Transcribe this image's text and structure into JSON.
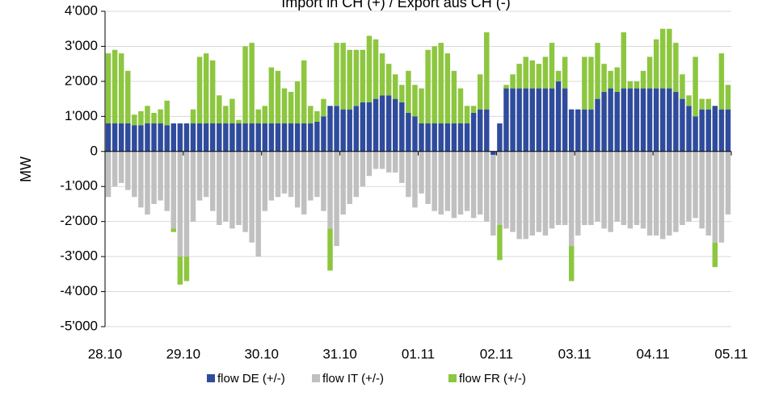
{
  "chart_data": {
    "type": "stacked_bar",
    "title": "Import in CH (+) / Export aus CH (-)",
    "y_label": "MW",
    "categories": [
      null,
      null,
      null,
      null,
      null,
      null,
      null,
      null,
      null,
      null,
      null,
      null,
      null,
      null,
      null,
      null,
      null,
      null,
      null,
      null,
      null,
      null,
      null,
      null,
      null,
      null,
      null,
      null,
      null,
      null,
      null,
      null,
      null,
      null,
      null,
      null,
      null,
      null,
      null,
      null,
      null,
      null,
      null,
      null,
      null,
      null,
      null,
      null,
      null,
      null,
      null,
      null,
      null,
      null,
      null,
      null,
      null,
      null,
      null,
      null,
      null,
      null,
      null,
      null,
      null,
      null,
      null,
      null,
      null,
      null,
      null,
      null,
      null,
      null,
      null,
      null,
      null,
      null,
      null,
      null,
      null,
      null,
      null,
      null,
      null,
      null,
      null,
      null,
      null,
      null,
      null,
      null,
      null,
      null,
      null,
      null
    ],
    "xticks": [
      {
        "value": 0,
        "label": "28.10"
      },
      {
        "value": 12,
        "label": "29.10"
      },
      {
        "value": 24,
        "label": "30.10"
      },
      {
        "value": 36,
        "label": "31.10"
      },
      {
        "value": 48,
        "label": "01.11"
      },
      {
        "value": 60,
        "label": "02.11"
      },
      {
        "value": 72,
        "label": "03.11"
      },
      {
        "value": 84,
        "label": "04.11"
      },
      {
        "value": 96,
        "label": "05.11"
      }
    ],
    "ylim": [
      -5000,
      4000
    ],
    "yticks": [
      {
        "value": -5000,
        "label": "-5'000"
      },
      {
        "value": -4000,
        "label": "-4'000"
      },
      {
        "value": -3000,
        "label": "-3'000"
      },
      {
        "value": -2000,
        "label": "-2'000"
      },
      {
        "value": -1000,
        "label": "-1'000"
      },
      0,
      {
        "value": 1000,
        "label": "1'000"
      },
      {
        "value": 2000,
        "label": "2'000"
      },
      {
        "value": 3000,
        "label": "3'000"
      },
      {
        "value": 4000,
        "label": "4'000"
      }
    ],
    "grid": true,
    "legend": "bottom",
    "series": [
      {
        "name": "flow DE (+/-)",
        "color": "#2f4b9c",
        "values": [
          800,
          800,
          800,
          800,
          750,
          750,
          800,
          800,
          800,
          750,
          800,
          800,
          800,
          800,
          800,
          800,
          800,
          800,
          800,
          800,
          800,
          800,
          800,
          800,
          800,
          800,
          800,
          800,
          800,
          800,
          800,
          800,
          850,
          1000,
          1300,
          1300,
          1200,
          1200,
          1300,
          1400,
          1400,
          1500,
          1600,
          1600,
          1500,
          1400,
          1100,
          1000,
          800,
          800,
          800,
          800,
          800,
          800,
          800,
          800,
          1100,
          1200,
          1200,
          -100,
          800,
          1800,
          1800,
          1800,
          1800,
          1800,
          1800,
          1800,
          1800,
          2000,
          1800,
          1200,
          1200,
          1200,
          1200,
          1500,
          1700,
          1800,
          1700,
          1800,
          1800,
          1800,
          1800,
          1800,
          1800,
          1800,
          1800,
          1700,
          1500,
          1300,
          1000,
          1200,
          1200,
          1300,
          1200,
          1200
        ]
      },
      {
        "name": "flow IT (+/-)",
        "color": "#c0c0c0",
        "values": [
          -1300,
          -1000,
          -900,
          -1100,
          -1300,
          -1600,
          -1800,
          -1500,
          -1400,
          -1700,
          -2200,
          -3000,
          -3000,
          -2000,
          -1400,
          -1300,
          -1700,
          -2100,
          -2000,
          -2200,
          -2100,
          -2300,
          -2600,
          -3000,
          -1700,
          -1400,
          -1300,
          -1200,
          -1300,
          -1600,
          -1800,
          -1400,
          -1300,
          -1700,
          -2200,
          -2700,
          -1800,
          -1500,
          -1300,
          -1000,
          -700,
          -500,
          -500,
          -600,
          -600,
          -900,
          -1300,
          -1600,
          -1200,
          -1500,
          -1700,
          -1800,
          -1700,
          -1900,
          -1800,
          -1700,
          -1900,
          -1800,
          -2000,
          -2300,
          -2100,
          -2200,
          -2300,
          -2500,
          -2500,
          -2400,
          -2300,
          -2400,
          -2200,
          -2100,
          -2100,
          -2700,
          -2400,
          -2100,
          -2100,
          -2000,
          -2200,
          -2300,
          -2000,
          -2100,
          -2200,
          -2100,
          -2200,
          -2400,
          -2400,
          -2500,
          -2400,
          -2300,
          -2100,
          -2000,
          -1900,
          -2200,
          -2400,
          -2600,
          -2600,
          -1800
        ]
      },
      {
        "name": "flow FR (+/-)",
        "color": "#8dc63f",
        "values": [
          2000,
          2100,
          2000,
          1500,
          300,
          400,
          500,
          300,
          400,
          700,
          -100,
          -800,
          -700,
          400,
          1900,
          2000,
          1800,
          800,
          500,
          700,
          100,
          2200,
          2300,
          400,
          500,
          1600,
          1500,
          1000,
          900,
          1200,
          1800,
          500,
          300,
          500,
          -1200,
          1800,
          1900,
          1700,
          1600,
          1500,
          1900,
          1700,
          1200,
          900,
          700,
          500,
          1200,
          900,
          1000,
          2100,
          2200,
          2300,
          2000,
          1500,
          1000,
          500,
          200,
          1000,
          2200,
          0,
          -1000,
          100,
          400,
          700,
          900,
          800,
          700,
          900,
          1300,
          300,
          900,
          -1000,
          0,
          1500,
          1500,
          1600,
          800,
          500,
          700,
          1600,
          200,
          200,
          500,
          900,
          1400,
          1700,
          1700,
          1400,
          700,
          300,
          1700,
          300,
          300,
          -700,
          1600,
          700
        ]
      }
    ]
  }
}
